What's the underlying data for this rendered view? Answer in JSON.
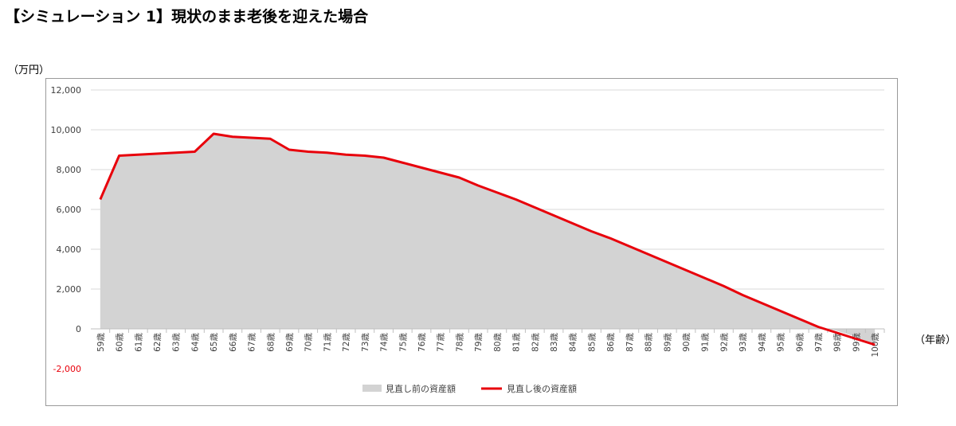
{
  "title": "【シミュレーション 1】現状のまま老後を迎えた場合",
  "chart_data": {
    "type": "area",
    "ylabel": "（万円）",
    "xlabel": "（年齢）",
    "ylim": [
      -2000,
      12000
    ],
    "yticks": [
      -2000,
      0,
      2000,
      4000,
      6000,
      8000,
      10000,
      12000
    ],
    "ytick_labels": [
      "-2,000",
      "0",
      "2,000",
      "4,000",
      "6,000",
      "8,000",
      "10,000",
      "12,000"
    ],
    "grid": true,
    "legend_position": "bottom",
    "categories": [
      "59歳",
      "60歳",
      "61歳",
      "62歳",
      "63歳",
      "64歳",
      "65歳",
      "66歳",
      "67歳",
      "68歳",
      "69歳",
      "70歳",
      "71歳",
      "72歳",
      "73歳",
      "74歳",
      "75歳",
      "76歳",
      "77歳",
      "78歳",
      "79歳",
      "80歳",
      "81歳",
      "82歳",
      "83歳",
      "84歳",
      "85歳",
      "86歳",
      "87歳",
      "88歳",
      "89歳",
      "90歳",
      "91歳",
      "92歳",
      "93歳",
      "94歳",
      "95歳",
      "96歳",
      "97歳",
      "98歳",
      "99歳",
      "100歳"
    ],
    "series": [
      {
        "name": "見直し前の資産額",
        "type": "area",
        "color": "#d3d3d3",
        "values": [
          6500,
          8700,
          8750,
          8800,
          8850,
          8900,
          9800,
          9650,
          9600,
          9550,
          9000,
          8900,
          8850,
          8750,
          8700,
          8600,
          8350,
          8100,
          7850,
          7600,
          7200,
          6850,
          6500,
          6100,
          5700,
          5300,
          4900,
          4500,
          4100,
          3700,
          3300,
          2900,
          2500,
          2100,
          1700,
          1300,
          900,
          500,
          100,
          -100,
          -400,
          -800
        ]
      },
      {
        "name": "見直し後の資産額",
        "type": "line",
        "color": "#e8000b",
        "values": [
          6500,
          8700,
          8750,
          8800,
          8850,
          8900,
          9800,
          9650,
          9600,
          9550,
          9000,
          8900,
          8850,
          8750,
          8700,
          8600,
          8350,
          8100,
          7850,
          7600,
          7200,
          6850,
          6500,
          6100,
          5700,
          5300,
          4900,
          4550,
          4150,
          3750,
          3350,
          2950,
          2550,
          2150,
          1700,
          1300,
          900,
          500,
          100,
          -200,
          -500,
          -800
        ]
      }
    ]
  }
}
